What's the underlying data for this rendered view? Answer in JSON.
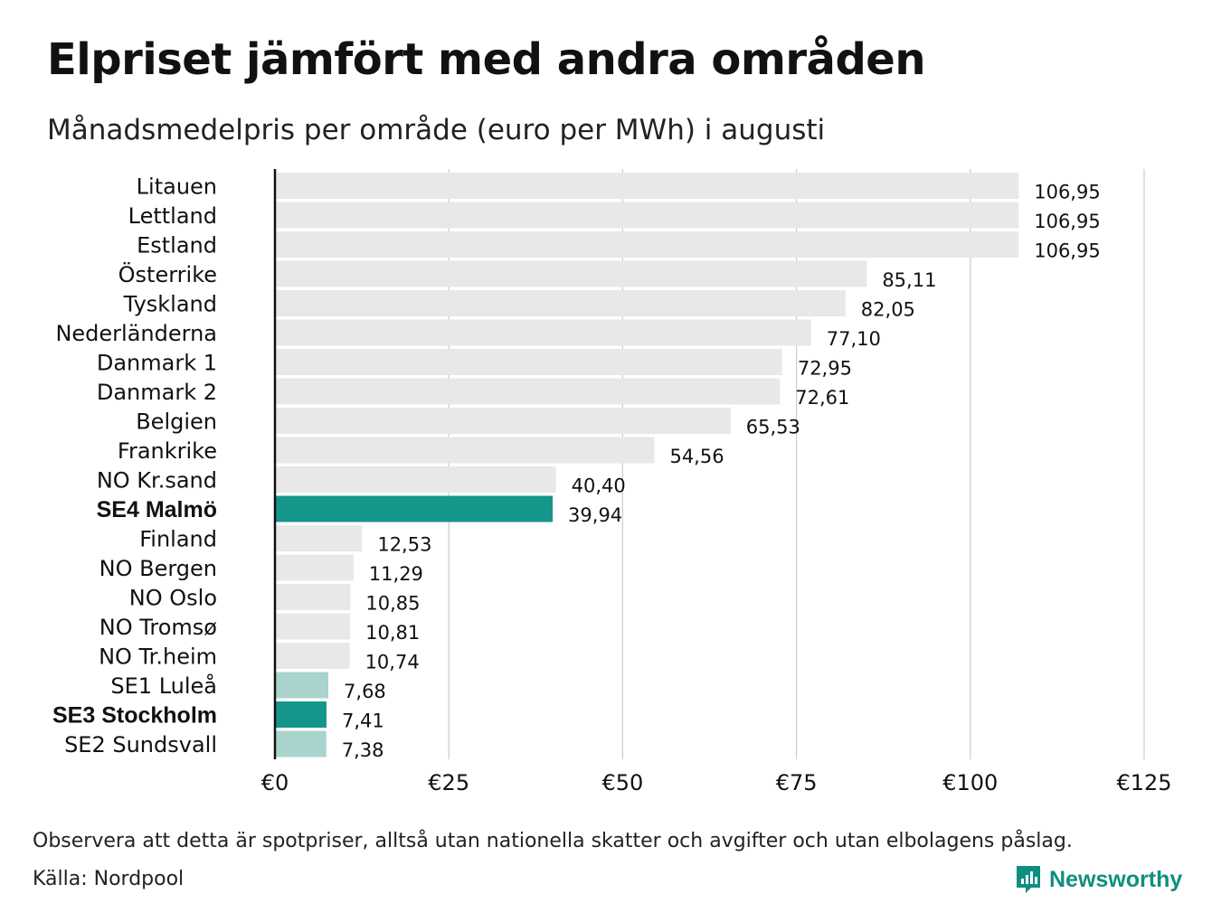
{
  "title": "Elpriset jämfört med andra områden",
  "subtitle": "Månadsmedelpris per område (euro per MWh) i augusti",
  "note": "Observera att detta är spotpriser, alltså utan nationella skatter och avgifter och utan elbolagens påslag.",
  "source": "Källa: Nordpool",
  "logo": {
    "name": "Newsworthy",
    "icon": "newsworthy-logo-icon"
  },
  "colors": {
    "default": "#e8e8e8",
    "highlight": "#14968a",
    "light_highlight": "#a8d4cd",
    "axis": "#111111",
    "grid": "#cccccc"
  },
  "chart_data": {
    "type": "bar",
    "orientation": "horizontal",
    "title": "Elpriset jämfört med andra områden",
    "subtitle": "Månadsmedelpris per område (euro per MWh) i augusti",
    "xlim": [
      0,
      125
    ],
    "ticks": [
      0,
      25,
      50,
      75,
      100,
      125
    ],
    "tick_labels": [
      "€0",
      "€25",
      "€50",
      "€75",
      "€100",
      "€125"
    ],
    "grid": true,
    "categories": [
      "Litauen",
      "Lettland",
      "Estland",
      "Österrike",
      "Tyskland",
      "Nederländerna",
      "Danmark  1",
      "Danmark  2",
      "Belgien",
      "Frankrike",
      "NO Kr.sand",
      "SE4 Malmö",
      "Finland",
      "NO Bergen",
      "NO Oslo",
      "NO Tromsø",
      "NO Tr.heim",
      "SE1   Luleå",
      "SE3 Stockholm",
      "SE2   Sundsvall"
    ],
    "values": [
      106.95,
      106.95,
      106.95,
      85.11,
      82.05,
      77.1,
      72.95,
      72.61,
      65.53,
      54.56,
      40.4,
      39.94,
      12.53,
      11.29,
      10.85,
      10.81,
      10.74,
      7.68,
      7.41,
      7.38
    ],
    "value_labels": [
      "106,95",
      "106,95",
      "106,95",
      "85,11",
      "82,05",
      "77,10",
      "72,95",
      "72,61",
      "65,53",
      "54,56",
      "40,40",
      "39,94",
      "12,53",
      "11,29",
      "10,85",
      "10,81",
      "10,74",
      "7,68",
      "7,41",
      "7,38"
    ],
    "bar_style": [
      "default",
      "default",
      "default",
      "default",
      "default",
      "default",
      "default",
      "default",
      "default",
      "default",
      "default",
      "highlight",
      "default",
      "default",
      "default",
      "default",
      "default",
      "light_highlight",
      "highlight",
      "light_highlight"
    ],
    "bold_labels": [
      "SE4 Malmö",
      "SE3 Stockholm"
    ]
  }
}
